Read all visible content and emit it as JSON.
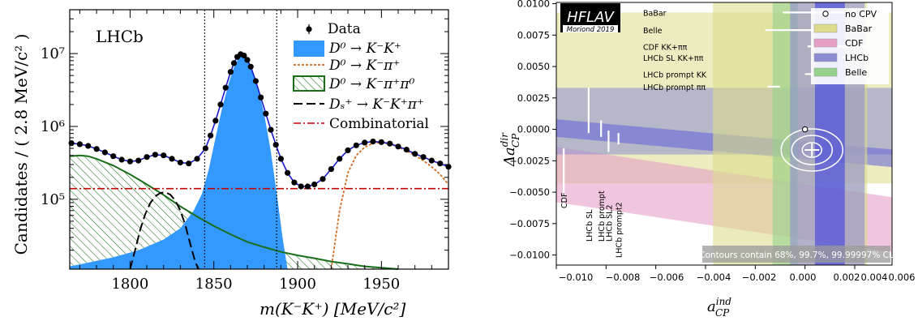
{
  "chart_data": [
    {
      "type": "line",
      "experiment_label": "LHCb",
      "xlabel": "m(K⁻K⁺) [MeV/c²]",
      "ylabel": "Candidates / ( 2.8 MeV/c² )",
      "xlim": [
        1764,
        1990
      ],
      "ylim": [
        11000,
        40000000
      ],
      "log_y": true,
      "x_ticks": [
        1800,
        1850,
        1900,
        1950
      ],
      "y_ticks": [
        {
          "value": 100000,
          "label": "10⁵"
        },
        {
          "value": 1000000,
          "label": "10⁶"
        },
        {
          "value": 10000000,
          "label": "10⁷"
        }
      ],
      "signal_window": [
        1844.5,
        1887.5
      ],
      "legend_position": "top-right",
      "legend": [
        {
          "key": "data",
          "label": "Data"
        },
        {
          "key": "kk",
          "label": "D⁰ → K⁻K⁺"
        },
        {
          "key": "kpi",
          "label": "D⁰ → K⁻π⁺"
        },
        {
          "key": "kpipi0",
          "label": "D⁰ → K⁻π⁺π⁰"
        },
        {
          "key": "ds",
          "label": "Dₛ⁺ → K⁻K⁺π⁺"
        },
        {
          "key": "comb",
          "label": "Combinatorial"
        }
      ],
      "colors": {
        "kk_fill": "#3399ff",
        "total_fit": "#1a1acc",
        "kpi": "#d2691e",
        "kpipi0": "#1a6e1a",
        "ds": "#000000",
        "comb": "#c00000"
      },
      "combinatorial_level": 140000,
      "series": [
        {
          "key": "data",
          "x": [
            1765,
            1770,
            1775,
            1780,
            1785,
            1790,
            1795,
            1800,
            1805,
            1810,
            1815,
            1820,
            1825,
            1830,
            1835,
            1840,
            1845,
            1848,
            1851,
            1854,
            1857,
            1860,
            1862,
            1864,
            1866,
            1868,
            1870,
            1872,
            1875,
            1878,
            1881,
            1884,
            1887,
            1890,
            1894,
            1898,
            1902,
            1906,
            1910,
            1915,
            1920,
            1925,
            1930,
            1935,
            1940,
            1945,
            1950,
            1955,
            1960,
            1965,
            1970,
            1975,
            1980,
            1985,
            1990
          ],
          "y": [
            590000,
            570000,
            540000,
            490000,
            440000,
            390000,
            350000,
            330000,
            340000,
            380000,
            410000,
            400000,
            360000,
            320000,
            310000,
            360000,
            500000,
            750000,
            1200000,
            2000000,
            3400000,
            5600000,
            7400000,
            9000000,
            9800000,
            9400000,
            8200000,
            6600000,
            4200000,
            2500000,
            1500000,
            900000,
            560000,
            360000,
            230000,
            170000,
            150000,
            150000,
            160000,
            190000,
            260000,
            360000,
            470000,
            550000,
            600000,
            620000,
            610000,
            580000,
            530000,
            480000,
            420000,
            380000,
            340000,
            310000,
            280000
          ]
        },
        {
          "key": "kk",
          "x": [
            1764,
            1775,
            1790,
            1805,
            1820,
            1830,
            1838,
            1843,
            1847,
            1851,
            1855,
            1859,
            1862,
            1865,
            1867,
            1870,
            1873,
            1876,
            1880,
            1884,
            1888,
            1891,
            1894
          ],
          "y": [
            12000,
            13500,
            16000,
            20000,
            28000,
            40000,
            70000,
            120000,
            260000,
            700000,
            1800000,
            4000000,
            6500000,
            9000000,
            9700000,
            8400000,
            6000000,
            3600000,
            1500000,
            450000,
            100000,
            30000,
            11000
          ]
        },
        {
          "key": "kpi",
          "x": [
            1920,
            1925,
            1930,
            1935,
            1940,
            1945,
            1950,
            1955,
            1960,
            1965,
            1970,
            1975,
            1980,
            1985,
            1990
          ],
          "y": [
            11000,
            70000,
            230000,
            400000,
            520000,
            590000,
            600000,
            580000,
            520000,
            460000,
            400000,
            340000,
            280000,
            220000,
            160000
          ]
        },
        {
          "key": "kpipi0",
          "x": [
            1764,
            1770,
            1775,
            1780,
            1790,
            1800,
            1810,
            1820,
            1830,
            1840,
            1850,
            1860,
            1870,
            1880,
            1890,
            1900,
            1910,
            1920,
            1930,
            1940,
            1950,
            1960
          ],
          "y": [
            390000,
            400000,
            390000,
            360000,
            290000,
            220000,
            160000,
            115000,
            80000,
            58000,
            43000,
            33000,
            26000,
            22000,
            19000,
            17000,
            15500,
            14000,
            13000,
            12000,
            11500,
            11000
          ]
        },
        {
          "key": "ds",
          "x": [
            1800,
            1803,
            1806,
            1809,
            1812,
            1815,
            1818,
            1821,
            1824,
            1827,
            1830,
            1833,
            1836,
            1839,
            1841
          ],
          "y": [
            11000,
            20000,
            38000,
            62000,
            88000,
            110000,
            122000,
            125000,
            116000,
            96000,
            70000,
            44000,
            24000,
            13500,
            11000
          ]
        }
      ]
    },
    {
      "type": "scatter",
      "logo": "HFLAV",
      "logo_subtitle": "Moriond 2019",
      "xlabel": "a_CP^ind",
      "xlabel_main": "a",
      "xlabel_sub": "CP",
      "xlabel_sup": "ind",
      "ylabel": "Δa_CP^dir",
      "ylabel_main": "Δa",
      "ylabel_sub": "CP",
      "ylabel_sup": "dir",
      "xlim": [
        -0.01,
        0.0035
      ],
      "ylim": [
        -0.0108,
        0.0101
      ],
      "x_ticks": [
        "−0.010",
        "−0.008",
        "−0.006",
        "−0.004",
        "−0.002",
        "0.000",
        "0.002",
        "0.004",
        "0.006"
      ],
      "y_ticks": [
        "0.0100",
        "0.0075",
        "0.0050",
        "0.0025",
        "0.0000",
        "−0.0025",
        "−0.0050",
        "−0.0075",
        "−0.0100"
      ],
      "legend_position": "top-right",
      "legend": [
        {
          "key": "nocpv",
          "label": "no CPV"
        },
        {
          "key": "babar",
          "label": "BaBar",
          "color": "#dcdc8c"
        },
        {
          "key": "cdf",
          "label": "CDF",
          "color": "#e6a0c8"
        },
        {
          "key": "lhcb",
          "label": "LHCb",
          "color": "#8c8cd2"
        },
        {
          "key": "belle",
          "label": "Belle",
          "color": "#96d28c"
        }
      ],
      "contour_note": "Contours contain 68%, 99.7%, 99.99997% CL",
      "no_cpv_point": [
        0.0,
        0.0
      ],
      "best_fit": [
        0.00028,
        -0.00164
      ],
      "bands": [
        {
          "key": "babar",
          "orientation": "vertical",
          "x_range": [
            -0.0037,
            0.0025
          ],
          "color": "#dcdc8c"
        },
        {
          "key": "babar",
          "orientation": "horizontal",
          "y_range": [
            -0.0043,
            0.0093
          ],
          "color": "#dcdc8c"
        },
        {
          "key": "cdf",
          "orientation": "diagonal",
          "left_y": [
            -0.0058,
            -0.0014
          ],
          "right_y": [
            -0.0098,
            -0.0054
          ],
          "color": "#e6a0c8"
        },
        {
          "key": "lhcb",
          "orientation": "horizontal",
          "y_range": [
            -0.002,
            0.0033
          ],
          "color": "#8c8cd2"
        },
        {
          "key": "lhcb",
          "orientation": "diagonal",
          "left_y": [
            -0.0006,
            0.0008
          ],
          "right_y": [
            -0.003,
            -0.0016
          ],
          "color": "#6060d8"
        },
        {
          "key": "lhcb",
          "orientation": "vertical",
          "x_range": [
            -0.0006,
            0.0024
          ],
          "color": "#8c8cd2"
        },
        {
          "key": "lhcb",
          "orientation": "vertical",
          "x_range": [
            0.0004,
            0.0016
          ],
          "color": "#4040e0"
        },
        {
          "key": "belle",
          "orientation": "vertical",
          "x_range": [
            -0.0013,
            -0.0003
          ],
          "color": "#96d28c"
        }
      ],
      "measurement_labels": [
        {
          "label": "BaBar",
          "y": 0.0093,
          "x0": -0.0009,
          "x1": 0.0017
        },
        {
          "label": "Belle",
          "y": 0.0079,
          "x0": -0.0016,
          "x1": 0.0008
        },
        {
          "label": "CDF KK+ππ",
          "y": 0.0066,
          "x0": 0.0001,
          "x1": 0.0024
        },
        {
          "label": "LHCb SL KK+ππ",
          "y": 0.0057,
          "x0": 0.0015,
          "x1": 0.0026
        },
        {
          "label": "LHCb prompt KK",
          "y": 0.0044,
          "x0": 0.0,
          "x1": 0.0004
        },
        {
          "label": "LHCb prompt ππ",
          "y": 0.0034,
          "x0": -0.0015,
          "x1": -0.001
        }
      ],
      "vertical_labels": [
        {
          "label": "CDF",
          "x": -0.0097,
          "y_top": -0.0015
        },
        {
          "label": "LHCb SL",
          "x": -0.0087,
          "y_top": -0.0005
        },
        {
          "label": "LHCb prompt",
          "x": -0.0082,
          "y_top": -0.0005
        },
        {
          "label": "LHCb SL2",
          "x": -0.0079,
          "y_top": -0.0012
        },
        {
          "label": "LHCb prompt2",
          "x": -0.0075,
          "y_top": -0.0012
        }
      ],
      "left_ticks": [
        {
          "x": -0.0087,
          "y0": -0.0003,
          "y1": 0.0033
        },
        {
          "x": -0.0082,
          "y0": -0.0006,
          "y1": 0.0007
        },
        {
          "x": -0.0079,
          "y0": -0.0018,
          "y1": -0.0001
        },
        {
          "x": -0.0075,
          "y0": -0.0012,
          "y1": -0.0003
        },
        {
          "x": -0.0097,
          "y0": -0.006,
          "y1": -0.0015
        }
      ]
    }
  ]
}
